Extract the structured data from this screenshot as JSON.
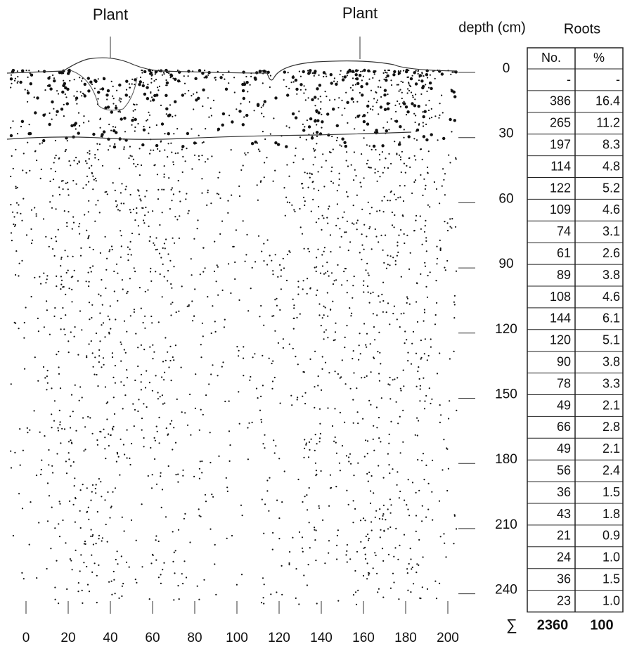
{
  "plants": [
    "Plant",
    "Plant"
  ],
  "depth_axis": {
    "title": "depth (cm)",
    "ticks": [
      0,
      30,
      60,
      90,
      120,
      150,
      180,
      210,
      240
    ]
  },
  "x_axis": {
    "ticks": [
      0,
      20,
      40,
      60,
      80,
      100,
      120,
      140,
      160,
      180,
      200
    ]
  },
  "table": {
    "title": "Roots",
    "header": [
      "No.",
      "%"
    ],
    "rows": [
      [
        "-",
        "-"
      ],
      [
        "386",
        "16.4"
      ],
      [
        "265",
        "11.2"
      ],
      [
        "197",
        "8.3"
      ],
      [
        "114",
        "4.8"
      ],
      [
        "122",
        "5.2"
      ],
      [
        "109",
        "4.6"
      ],
      [
        "74",
        "3.1"
      ],
      [
        "61",
        "2.6"
      ],
      [
        "89",
        "3.8"
      ],
      [
        "108",
        "4.6"
      ],
      [
        "144",
        "6.1"
      ],
      [
        "120",
        "5.1"
      ],
      [
        "90",
        "3.8"
      ],
      [
        "78",
        "3.3"
      ],
      [
        "49",
        "2.1"
      ],
      [
        "66",
        "2.8"
      ],
      [
        "49",
        "2.1"
      ],
      [
        "56",
        "2.4"
      ],
      [
        "36",
        "1.5"
      ],
      [
        "43",
        "1.8"
      ],
      [
        "21",
        "0.9"
      ],
      [
        "24",
        "1.0"
      ],
      [
        "36",
        "1.5"
      ],
      [
        "23",
        "1.0"
      ]
    ],
    "total_symbol": "∑",
    "total": [
      "2360",
      "100"
    ]
  }
}
